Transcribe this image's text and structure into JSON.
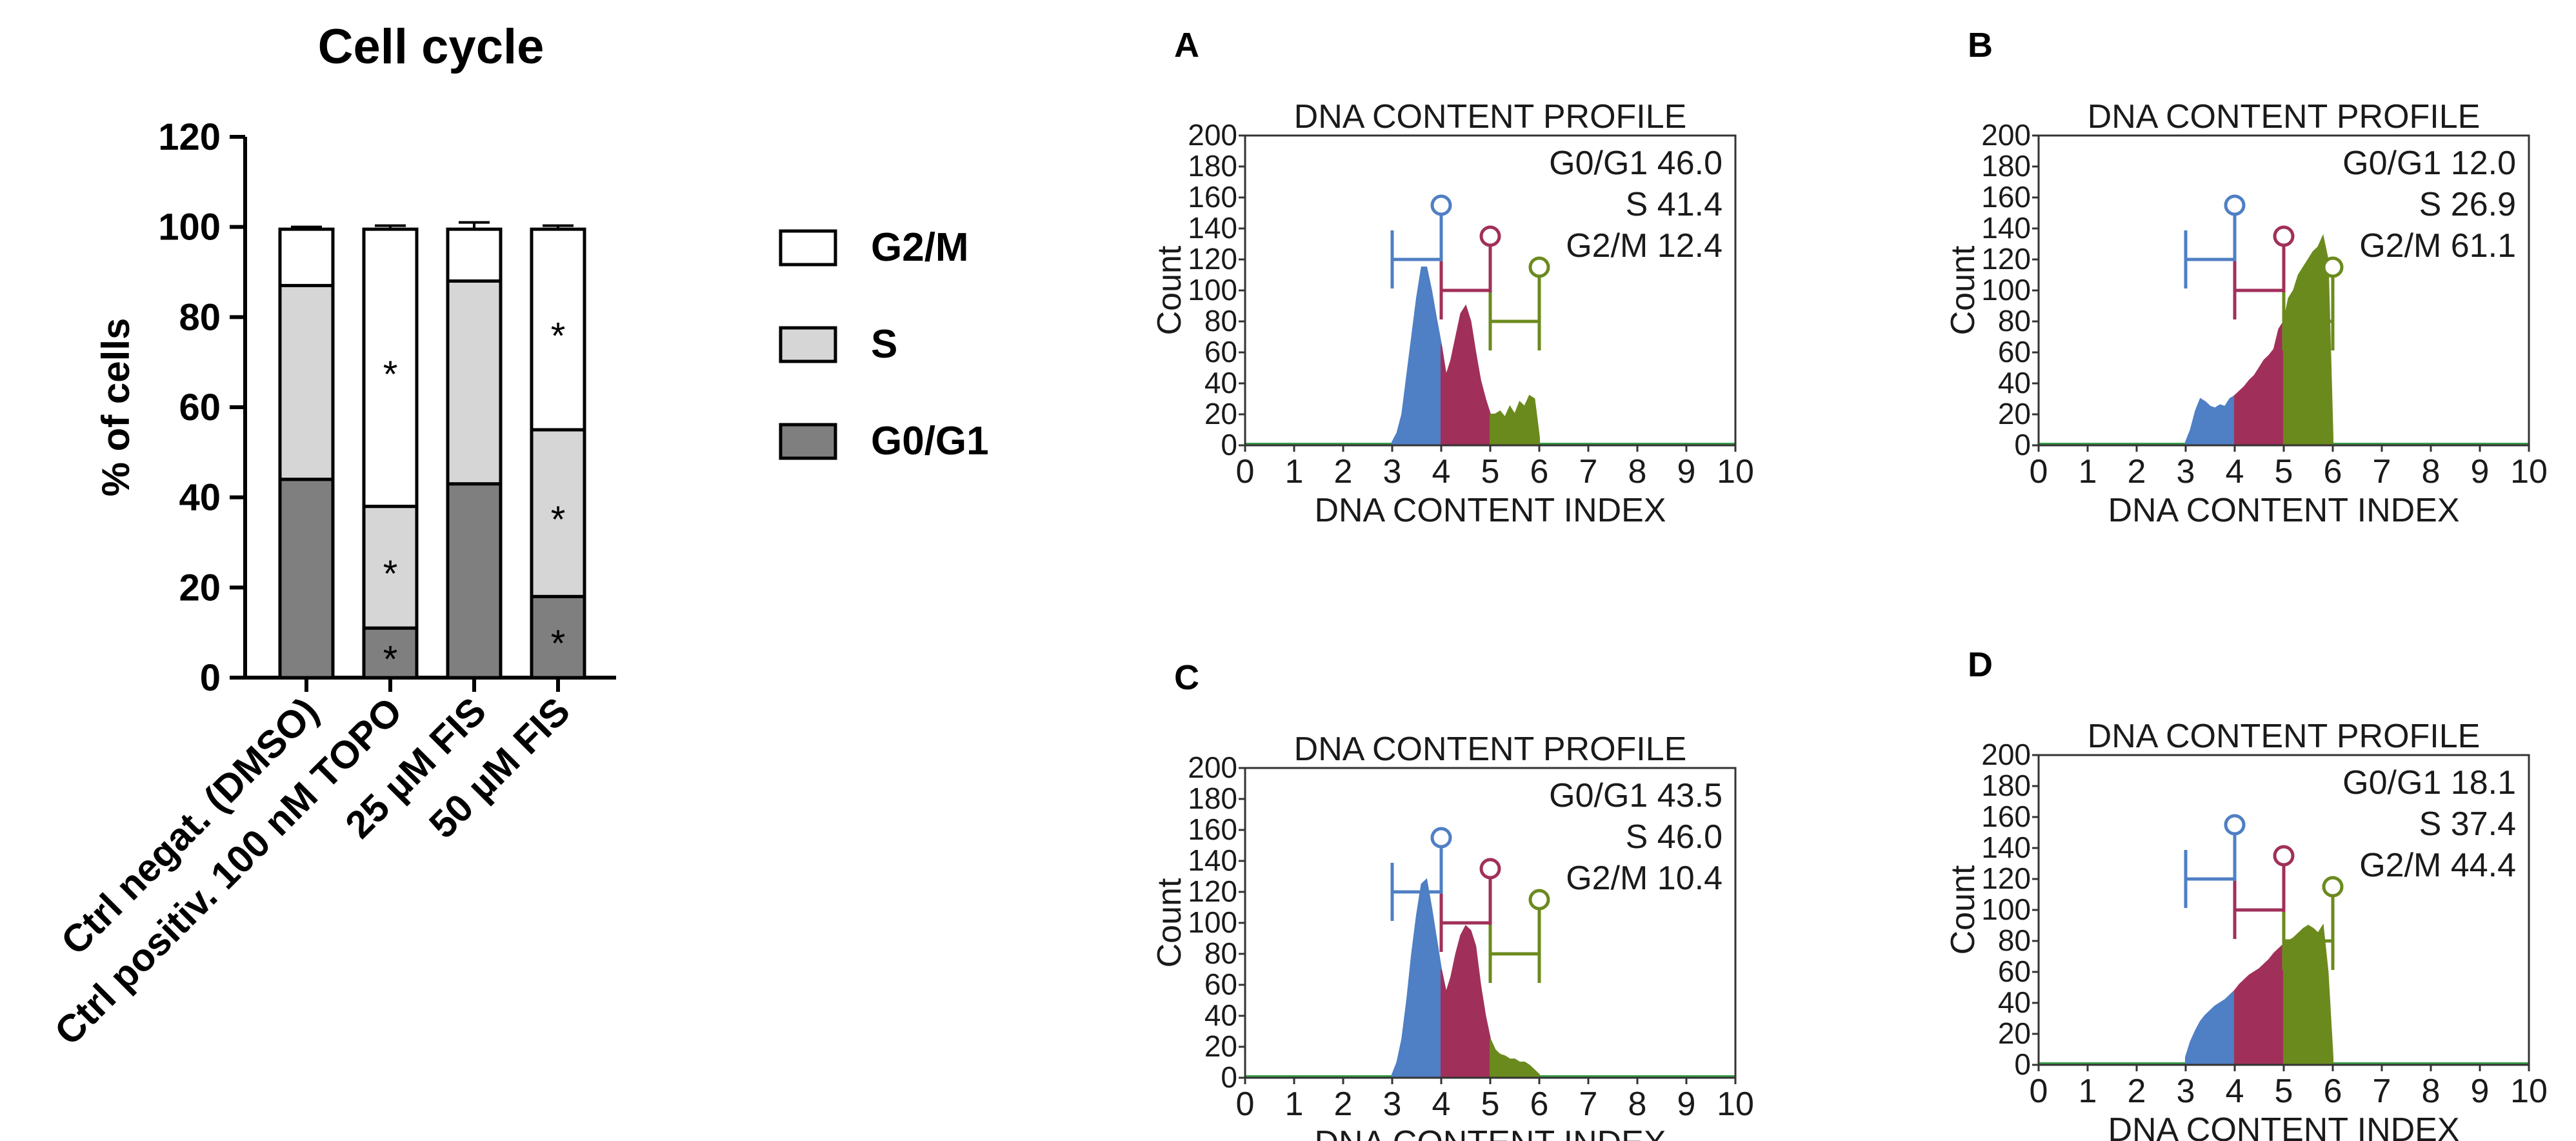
{
  "chart_data": [
    {
      "type": "bar",
      "stacked": true,
      "title": "Cell cycle",
      "xlabel": "",
      "ylabel": "% of cells",
      "ylim": [
        0,
        120
      ],
      "yticks": [
        0,
        20,
        40,
        60,
        80,
        100,
        120
      ],
      "categories": [
        "Ctrl negat. (DMSO)",
        "Ctrl positiv. 100 nM TOPO",
        "25 µM FIS",
        "50 µM FIS"
      ],
      "series": [
        {
          "name": "G0/G1",
          "color": "#7f7f7f",
          "values": [
            44,
            11,
            43,
            18
          ],
          "errors": [
            2,
            1,
            0,
            0.5
          ],
          "significant": [
            false,
            true,
            false,
            true
          ]
        },
        {
          "name": "S",
          "color": "#d6d6d6",
          "values": [
            43,
            27,
            45,
            37
          ],
          "errors": [
            2.5,
            0.5,
            1.5,
            1.2
          ],
          "significant": [
            false,
            true,
            false,
            true
          ]
        },
        {
          "name": "G2/M",
          "color": "#ffffff",
          "values": [
            12.5,
            61.5,
            11.5,
            44.5
          ],
          "errors": [
            0.5,
            0.8,
            1.5,
            0.8
          ],
          "significant": [
            false,
            true,
            false,
            true
          ]
        }
      ],
      "significance_marker": "*",
      "legend": {
        "placement": "right",
        "order": [
          "G2/M",
          "S",
          "G0/G1"
        ]
      }
    },
    {
      "type": "area",
      "panel": "A",
      "title": "DNA CONTENT PROFILE",
      "xlabel": "DNA CONTENT INDEX",
      "ylabel": "Count",
      "xlim": [
        0,
        10
      ],
      "ylim": [
        0,
        200
      ],
      "xticks": [
        0,
        1,
        2,
        3,
        4,
        5,
        6,
        7,
        8,
        9,
        10
      ],
      "yticks": [
        0,
        20,
        40,
        60,
        80,
        100,
        120,
        140,
        160,
        180,
        200
      ],
      "stats": [
        "G0/G1 46.0",
        "S 41.4",
        "G2/M 12.4"
      ],
      "x": [
        3.0,
        3.1,
        3.2,
        3.3,
        3.4,
        3.5,
        3.6,
        3.7,
        3.8,
        3.9,
        4.0,
        4.1,
        4.2,
        4.3,
        4.4,
        4.5,
        4.6,
        4.7,
        4.8,
        4.9,
        5.0,
        5.1,
        5.2,
        5.3,
        5.4,
        5.5,
        5.6,
        5.7,
        5.8,
        5.9,
        6.0
      ],
      "y": [
        2,
        8,
        20,
        45,
        70,
        95,
        115,
        115,
        100,
        82,
        65,
        45,
        55,
        70,
        85,
        90,
        80,
        60,
        42,
        30,
        20,
        20,
        22,
        18,
        25,
        20,
        28,
        25,
        32,
        30,
        5
      ],
      "gates": [
        {
          "name": "G0/G1",
          "color": "#4f7fc4",
          "from": 3.0,
          "to": 4.0,
          "level": 120,
          "marker_level": 155
        },
        {
          "name": "S",
          "color": "#a0305a",
          "from": 4.0,
          "to": 5.0,
          "level": 100,
          "marker_level": 135
        },
        {
          "name": "G2/M",
          "color": "#6b8a1e",
          "from": 5.0,
          "to": 6.0,
          "level": 80,
          "marker_level": 115
        }
      ]
    },
    {
      "type": "area",
      "panel": "B",
      "title": "DNA CONTENT PROFILE",
      "xlabel": "DNA CONTENT INDEX",
      "ylabel": "Count",
      "xlim": [
        0,
        10
      ],
      "ylim": [
        0,
        200
      ],
      "xticks": [
        0,
        1,
        2,
        3,
        4,
        5,
        6,
        7,
        8,
        9,
        10
      ],
      "yticks": [
        0,
        20,
        40,
        60,
        80,
        100,
        120,
        140,
        160,
        180,
        200
      ],
      "stats": [
        "G0/G1 12.0",
        "S 26.9",
        "G2/M 61.1"
      ],
      "x": [
        3.0,
        3.1,
        3.2,
        3.3,
        3.4,
        3.5,
        3.6,
        3.7,
        3.8,
        3.9,
        4.0,
        4.1,
        4.2,
        4.3,
        4.4,
        4.5,
        4.6,
        4.7,
        4.8,
        4.9,
        5.0,
        5.1,
        5.2,
        5.3,
        5.4,
        5.5,
        5.6,
        5.7,
        5.8,
        5.9,
        6.0
      ],
      "y": [
        2,
        10,
        22,
        30,
        28,
        25,
        24,
        26,
        25,
        30,
        32,
        35,
        38,
        42,
        45,
        50,
        55,
        58,
        62,
        75,
        80,
        95,
        100,
        110,
        115,
        120,
        125,
        128,
        135,
        120,
        5
      ],
      "gates": [
        {
          "name": "G0/G1",
          "color": "#4f7fc4",
          "from": 3.0,
          "to": 4.0,
          "level": 120,
          "marker_level": 155
        },
        {
          "name": "S",
          "color": "#a0305a",
          "from": 4.0,
          "to": 5.0,
          "level": 100,
          "marker_level": 135
        },
        {
          "name": "G2/M",
          "color": "#6b8a1e",
          "from": 5.0,
          "to": 6.0,
          "level": 80,
          "marker_level": 115
        }
      ]
    },
    {
      "type": "area",
      "panel": "C",
      "title": "DNA CONTENT PROFILE",
      "xlabel": "DNA CONTENT INDEX",
      "ylabel": "Count",
      "xlim": [
        0,
        10
      ],
      "ylim": [
        0,
        200
      ],
      "xticks": [
        0,
        1,
        2,
        3,
        4,
        5,
        6,
        7,
        8,
        9,
        10
      ],
      "yticks": [
        0,
        20,
        40,
        60,
        80,
        100,
        120,
        140,
        160,
        180,
        200
      ],
      "stats": [
        "G0/G1 43.5",
        "S 46.0",
        "G2/M 10.4"
      ],
      "x": [
        3.0,
        3.1,
        3.2,
        3.3,
        3.4,
        3.5,
        3.6,
        3.7,
        3.8,
        3.9,
        4.0,
        4.1,
        4.2,
        4.3,
        4.4,
        4.5,
        4.6,
        4.7,
        4.8,
        4.9,
        5.0,
        5.1,
        5.2,
        5.3,
        5.4,
        5.5,
        5.6,
        5.7,
        5.8,
        5.9,
        6.0
      ],
      "y": [
        2,
        10,
        25,
        50,
        80,
        105,
        125,
        128,
        110,
        90,
        70,
        55,
        65,
        80,
        92,
        98,
        95,
        85,
        60,
        40,
        25,
        18,
        15,
        14,
        12,
        12,
        10,
        10,
        8,
        5,
        2
      ],
      "gates": [
        {
          "name": "G0/G1",
          "color": "#4f7fc4",
          "from": 3.0,
          "to": 4.0,
          "level": 120,
          "marker_level": 155
        },
        {
          "name": "S",
          "color": "#a0305a",
          "from": 4.0,
          "to": 5.0,
          "level": 100,
          "marker_level": 135
        },
        {
          "name": "G2/M",
          "color": "#6b8a1e",
          "from": 5.0,
          "to": 6.0,
          "level": 80,
          "marker_level": 115
        }
      ]
    },
    {
      "type": "area",
      "panel": "D",
      "title": "DNA CONTENT PROFILE",
      "xlabel": "DNA CONTENT INDEX",
      "ylabel": "Count",
      "xlim": [
        0,
        10
      ],
      "ylim": [
        0,
        200
      ],
      "xticks": [
        0,
        1,
        2,
        3,
        4,
        5,
        6,
        7,
        8,
        9,
        10
      ],
      "yticks": [
        0,
        20,
        40,
        60,
        80,
        100,
        120,
        140,
        160,
        180,
        200
      ],
      "stats": [
        "G0/G1 18.1",
        "S 37.4",
        "G2/M 44.4"
      ],
      "x": [
        3.0,
        3.1,
        3.2,
        3.3,
        3.4,
        3.5,
        3.6,
        3.7,
        3.8,
        3.9,
        4.0,
        4.1,
        4.2,
        4.3,
        4.4,
        4.5,
        4.6,
        4.7,
        4.8,
        4.9,
        5.0,
        5.1,
        5.2,
        5.3,
        5.4,
        5.5,
        5.6,
        5.7,
        5.8,
        5.9,
        6.0
      ],
      "y": [
        5,
        15,
        22,
        28,
        32,
        35,
        38,
        40,
        42,
        45,
        48,
        52,
        55,
        58,
        60,
        62,
        65,
        68,
        72,
        75,
        78,
        80,
        82,
        85,
        88,
        90,
        88,
        85,
        90,
        60,
        5
      ],
      "gates": [
        {
          "name": "G0/G1",
          "color": "#4f7fc4",
          "from": 3.0,
          "to": 4.0,
          "level": 120,
          "marker_level": 155
        },
        {
          "name": "S",
          "color": "#a0305a",
          "from": 4.0,
          "to": 5.0,
          "level": 100,
          "marker_level": 135
        },
        {
          "name": "G2/M",
          "color": "#6b8a1e",
          "from": 5.0,
          "to": 6.0,
          "level": 80,
          "marker_level": 115
        }
      ]
    }
  ]
}
